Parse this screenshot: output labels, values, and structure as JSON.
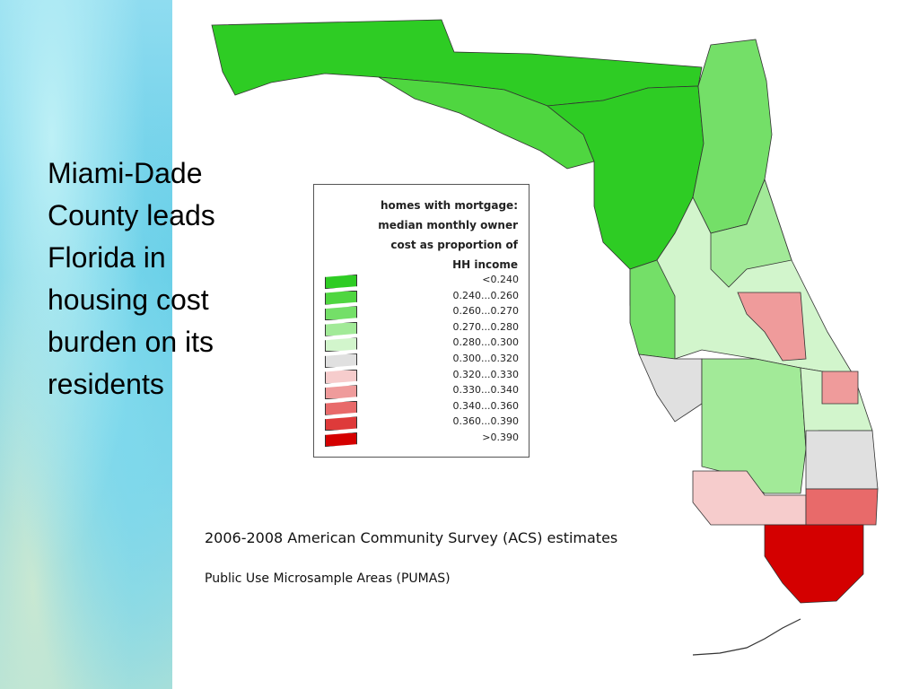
{
  "slide": {
    "headline_lines": [
      "Miami-Dade",
      "County leads",
      "Florida in",
      "housing cost",
      "burden on its",
      "residents"
    ]
  },
  "legend": {
    "title_lines": [
      "homes with mortgage:",
      "median monthly owner",
      "cost as proportion of",
      "HH income"
    ],
    "items": [
      {
        "label": "<0.240",
        "color": "#2ecc24"
      },
      {
        "label": "0.240...0.260",
        "color": "#4fd640"
      },
      {
        "label": "0.260...0.270",
        "color": "#74df68"
      },
      {
        "label": "0.270...0.280",
        "color": "#a2ea98"
      },
      {
        "label": "0.280...0.300",
        "color": "#d2f5cc"
      },
      {
        "label": "0.300...0.320",
        "color": "#e0e0e0"
      },
      {
        "label": "0.320...0.330",
        "color": "#f6cccc"
      },
      {
        "label": "0.330...0.340",
        "color": "#ef9b9b"
      },
      {
        "label": "0.340...0.360",
        "color": "#e86a6a"
      },
      {
        "label": "0.360...0.390",
        "color": "#de3a3a"
      },
      {
        "label": ">0.390",
        "color": "#d40000"
      }
    ]
  },
  "captions": {
    "main": "2006-2008 American Community Survey (ACS) estimates",
    "sub": "Public Use Microsample Areas (PUMAS)"
  }
}
